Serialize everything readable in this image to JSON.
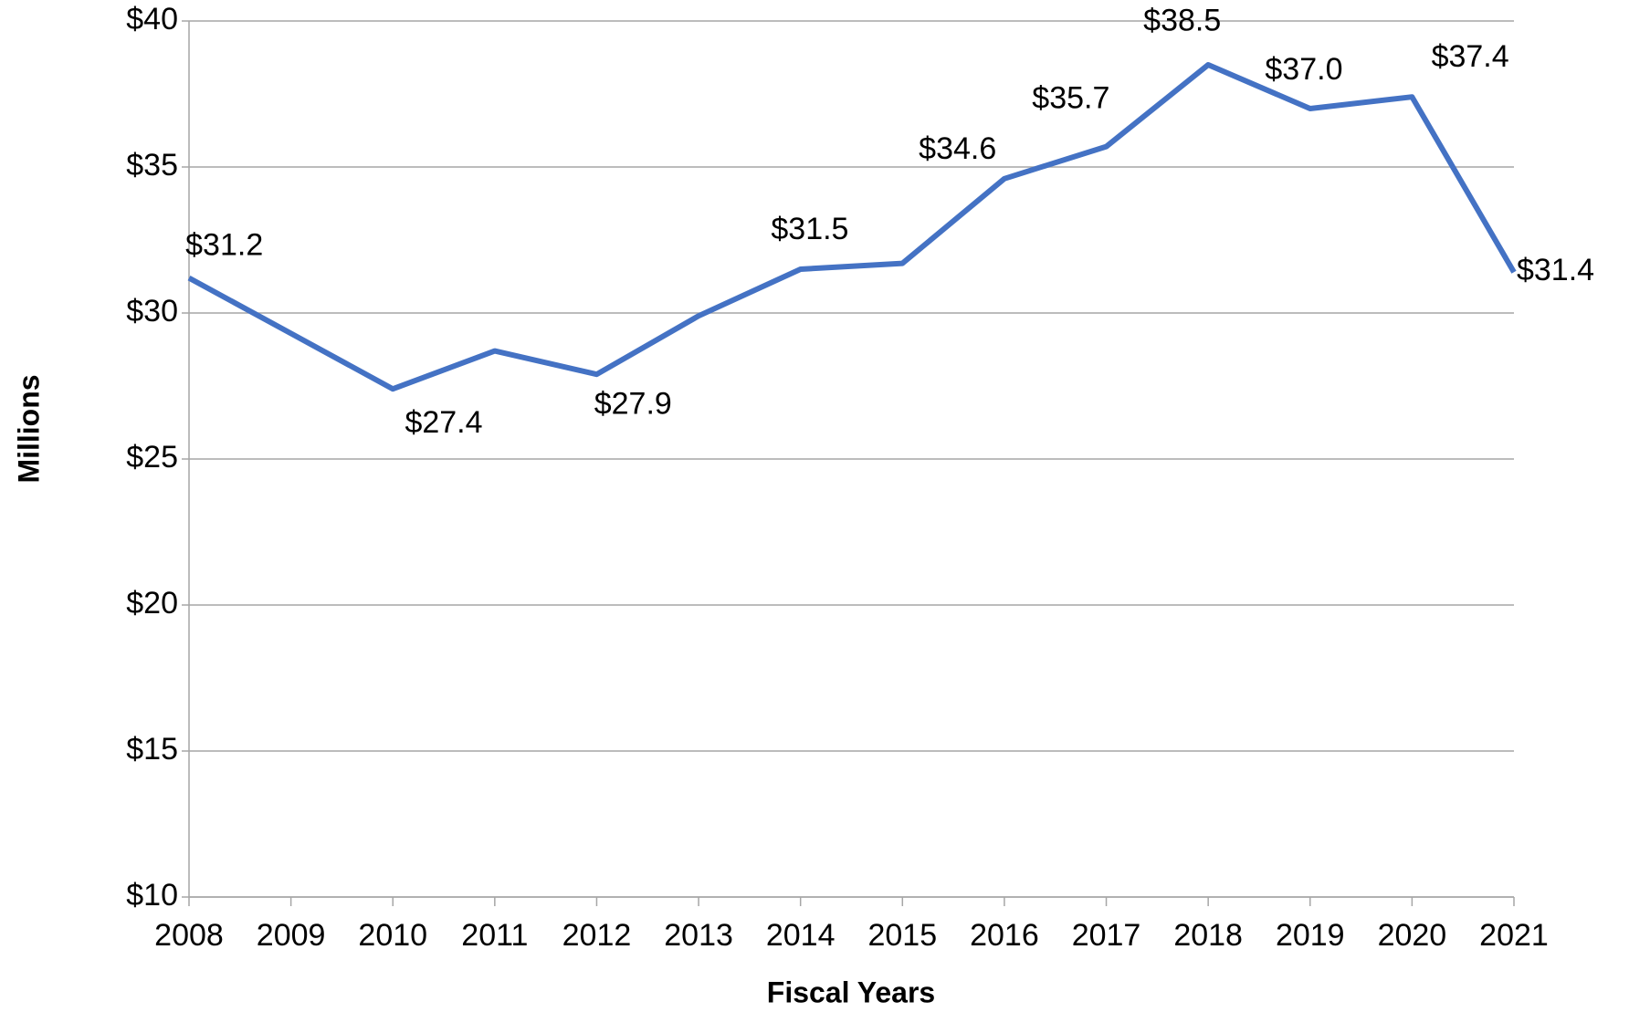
{
  "chart_data": {
    "type": "line",
    "x_label": "Fiscal Years",
    "y_label": "Millions",
    "x": [
      2008,
      2009,
      2010,
      2011,
      2012,
      2013,
      2014,
      2015,
      2016,
      2017,
      2018,
      2019,
      2020,
      2021
    ],
    "series": [
      {
        "name": null,
        "color": "#4472c4",
        "values": [
          31.2,
          29.3,
          27.4,
          28.7,
          27.9,
          29.9,
          31.5,
          31.7,
          34.6,
          35.7,
          38.5,
          37.0,
          37.4,
          31.4
        ],
        "value_labels": [
          "$31.2",
          null,
          "$27.4",
          null,
          "$27.9",
          null,
          "$31.5",
          null,
          "$34.6",
          "$35.7",
          "$38.5",
          "$37.0",
          "$37.4",
          "$31.4"
        ]
      }
    ],
    "xlim": [
      2008,
      2021
    ],
    "xticks": [
      2008,
      2009,
      2010,
      2011,
      2012,
      2013,
      2014,
      2015,
      2016,
      2017,
      2018,
      2019,
      2020,
      2021
    ],
    "ylim": [
      10,
      40
    ],
    "yticks": [
      {
        "value": 10,
        "label": "$10"
      },
      {
        "value": 15,
        "label": "$15"
      },
      {
        "value": 20,
        "label": "$20"
      },
      {
        "value": 25,
        "label": "$25"
      },
      {
        "value": 30,
        "label": "$30"
      },
      {
        "value": 35,
        "label": "$35"
      },
      {
        "value": 40,
        "label": "$40"
      }
    ],
    "grid": true
  }
}
